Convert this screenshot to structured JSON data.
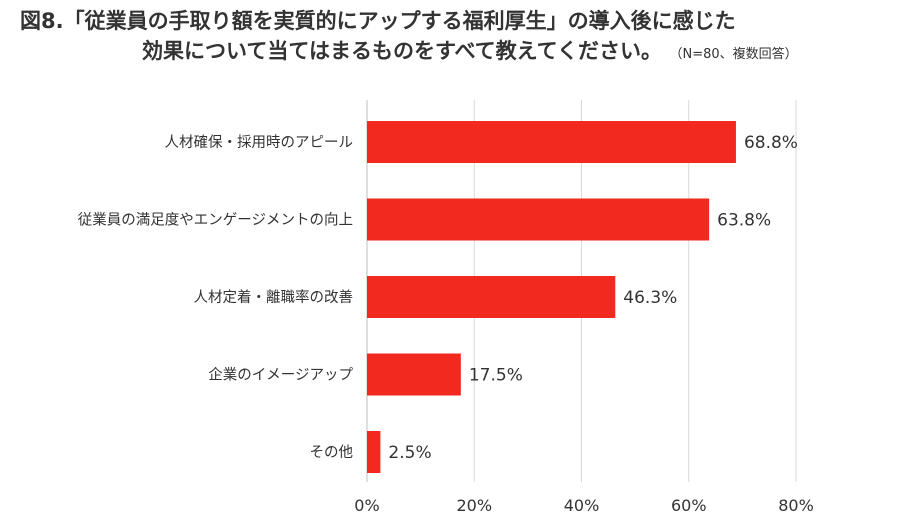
{
  "title": {
    "line1": "図8.「従業員の手取り額を実質的にアップする福利厚生」の導入後に感じた",
    "line2": "効果について当てはまるものをすべて教えてください。",
    "note": "（N=80、複数回答）"
  },
  "chart_data": {
    "type": "bar",
    "orientation": "horizontal",
    "categories": [
      "人材確保・採用時のアピール",
      "従業員の満足度やエンゲージメントの向上",
      "人材定着・離職率の改善",
      "企業のイメージアップ",
      "その他"
    ],
    "values": [
      68.8,
      63.8,
      46.3,
      17.5,
      2.5
    ],
    "value_labels": [
      "68.8%",
      "63.8%",
      "46.3%",
      "17.5%",
      "2.5%"
    ],
    "xlim": [
      0,
      80
    ],
    "xticks": [
      0,
      20,
      40,
      60,
      80
    ],
    "xtick_labels": [
      "0%",
      "20%",
      "40%",
      "60%",
      "80%"
    ],
    "grid": true,
    "bar_color": "#f2291e",
    "grid_color": "#d9d9d9"
  }
}
